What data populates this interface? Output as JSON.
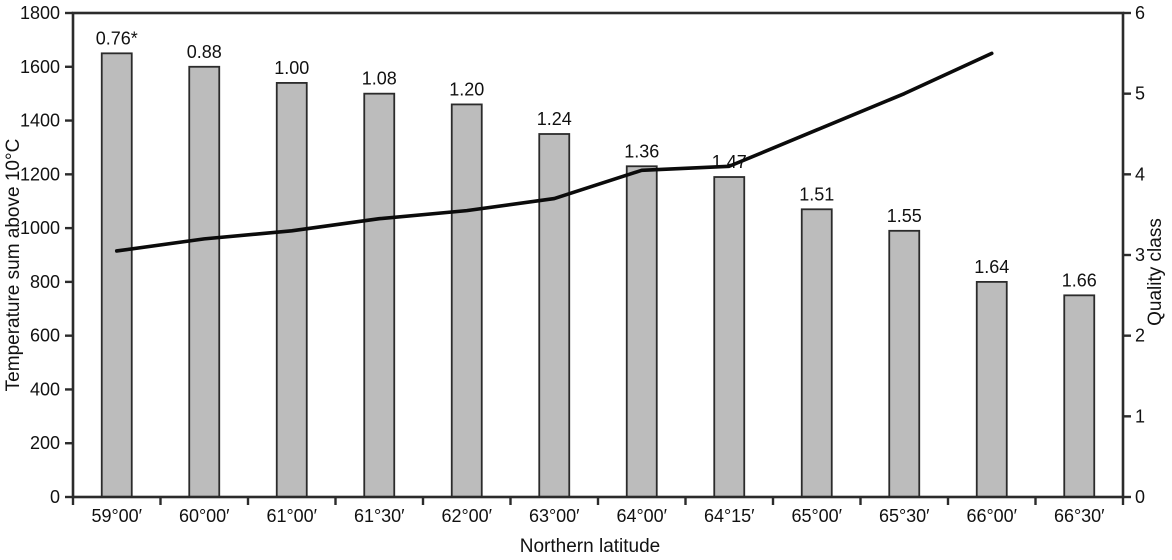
{
  "chart_data": {
    "type": "bar",
    "title": "",
    "categories": [
      "59°00′",
      "60°00′",
      "61°00′",
      "61°30′",
      "62°00′",
      "63°00′",
      "64°00′",
      "64°15′",
      "65°00′",
      "65°30′",
      "66°00′",
      "66°30′"
    ],
    "series": [
      {
        "name": "Temperature sum above 10°C",
        "type": "bar",
        "axis": "left",
        "values": [
          1650,
          1600,
          1540,
          1500,
          1460,
          1350,
          1230,
          1190,
          1070,
          990,
          800,
          750
        ],
        "point_labels": [
          "0.76*",
          "0.88",
          "1.00",
          "1.08",
          "1.20",
          "1.24",
          "1.36",
          "1.47",
          "1.51",
          "1.55",
          "1.64",
          "1.66"
        ]
      },
      {
        "name": "Quality class",
        "type": "line",
        "axis": "right",
        "values": [
          3.05,
          3.2,
          3.3,
          3.45,
          3.55,
          3.7,
          4.05,
          4.1,
          4.55,
          5.0,
          5.5,
          null
        ]
      }
    ],
    "xlabel": "Northern latitude",
    "axes": {
      "left": {
        "title": "Temperature sum above 10°C",
        "min": 0,
        "max": 1800,
        "ticks": [
          0,
          200,
          400,
          600,
          800,
          1000,
          1200,
          1400,
          1600,
          1800
        ]
      },
      "right": {
        "title": "Quality class",
        "min": 0,
        "max": 6,
        "ticks": [
          0,
          1,
          2,
          3,
          4,
          5,
          6
        ]
      }
    },
    "legend": "none",
    "grid": false,
    "colors": {
      "bar_fill": "#bcbcbc",
      "bar_stroke": "#2b2b2b",
      "line": "#0b0b0b",
      "axis": "#2b2b2b",
      "text": "#111111",
      "background": "#ffffff"
    }
  }
}
